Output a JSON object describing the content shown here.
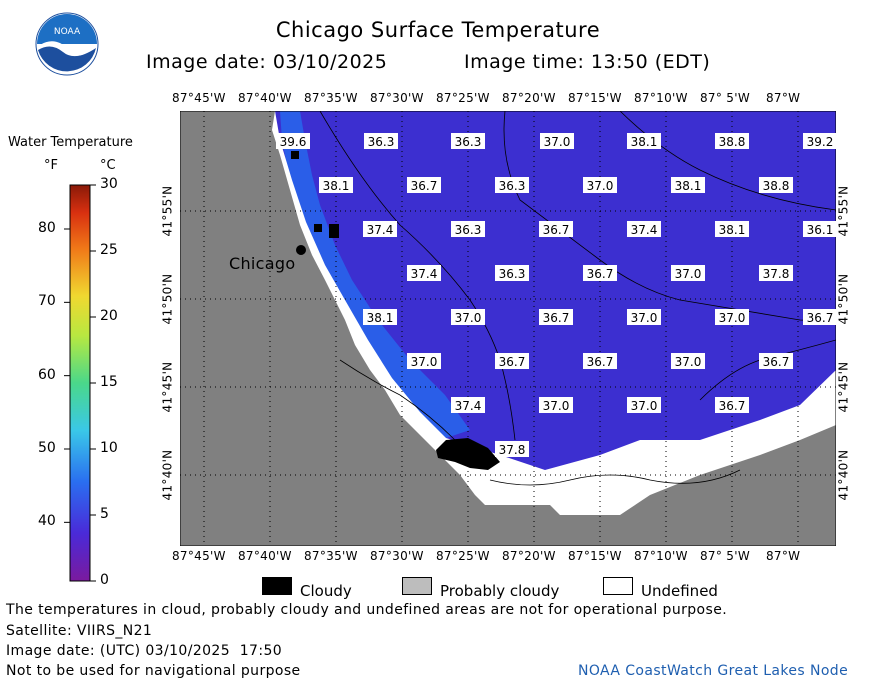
{
  "header": {
    "title": "Chicago Surface Temperature",
    "date": "Image date: 03/10/2025",
    "time": "Image time: 13:50 (EDT)"
  },
  "logo": {
    "text": "NOAA",
    "icon": "noaa-logo-icon"
  },
  "legend": {
    "title": "Water Temperature",
    "unit_f": "°F",
    "unit_c": "°C",
    "f_ticks": [
      "80",
      "70",
      "60",
      "50",
      "40"
    ],
    "c_ticks": [
      "30",
      "25",
      "20",
      "15",
      "10",
      "5",
      "0"
    ],
    "c_range": [
      0,
      30
    ]
  },
  "map": {
    "top_lon_labels": [
      "87°45'W",
      "87°40'W",
      "87°35'W",
      "87°30'W",
      "87°25'W",
      "87°20'W",
      "87°15'W",
      "87°10'W",
      "87° 5'W",
      "87°W"
    ],
    "bottom_lon_labels": [
      "87°45'W",
      "87°40'W",
      "87°35'W",
      "87°30'W",
      "87°25'W",
      "87°20'W",
      "87°15'W",
      "87°10'W",
      "87° 5'W",
      "87°W"
    ],
    "lat_labels": [
      "41°55'N",
      "41°50'N",
      "41°45'N",
      "41°40'N"
    ],
    "city": "Chicago",
    "colors": {
      "land": "#808080",
      "water": "#3c2fd0",
      "nearshore": "#2a5ee8",
      "cloudy": "#000000",
      "undefined": "#ffffff"
    },
    "temperatures": [
      "39.6",
      "36.3",
      "36.3",
      "37.0",
      "38.1",
      "38.8",
      "39.2",
      "38.1",
      "36.7",
      "36.3",
      "37.0",
      "38.1",
      "38.8",
      "37.4",
      "36.3",
      "36.7",
      "37.4",
      "38.1",
      "36.1",
      "37.4",
      "36.3",
      "36.7",
      "37.0",
      "37.8",
      "38.1",
      "37.0",
      "36.7",
      "37.0",
      "37.0",
      "36.7",
      "37.0",
      "36.7",
      "36.7",
      "37.0",
      "36.7",
      "37.4",
      "37.0",
      "37.0",
      "36.7",
      "37.8"
    ]
  },
  "key": {
    "cloudy": "Cloudy",
    "probably_cloudy": "Probably cloudy",
    "undefined": "Undefined"
  },
  "footer": {
    "disclaimer": "The temperatures in cloud, probably cloudy and undefined areas are not for operational purpose.",
    "satellite": "Satellite: VIIRS_N21",
    "utc_date": "Image date: (UTC) 03/10/2025  17:50",
    "nav": "Not to be used for navigational purpose",
    "credit": "NOAA CoastWatch Great Lakes Node"
  }
}
